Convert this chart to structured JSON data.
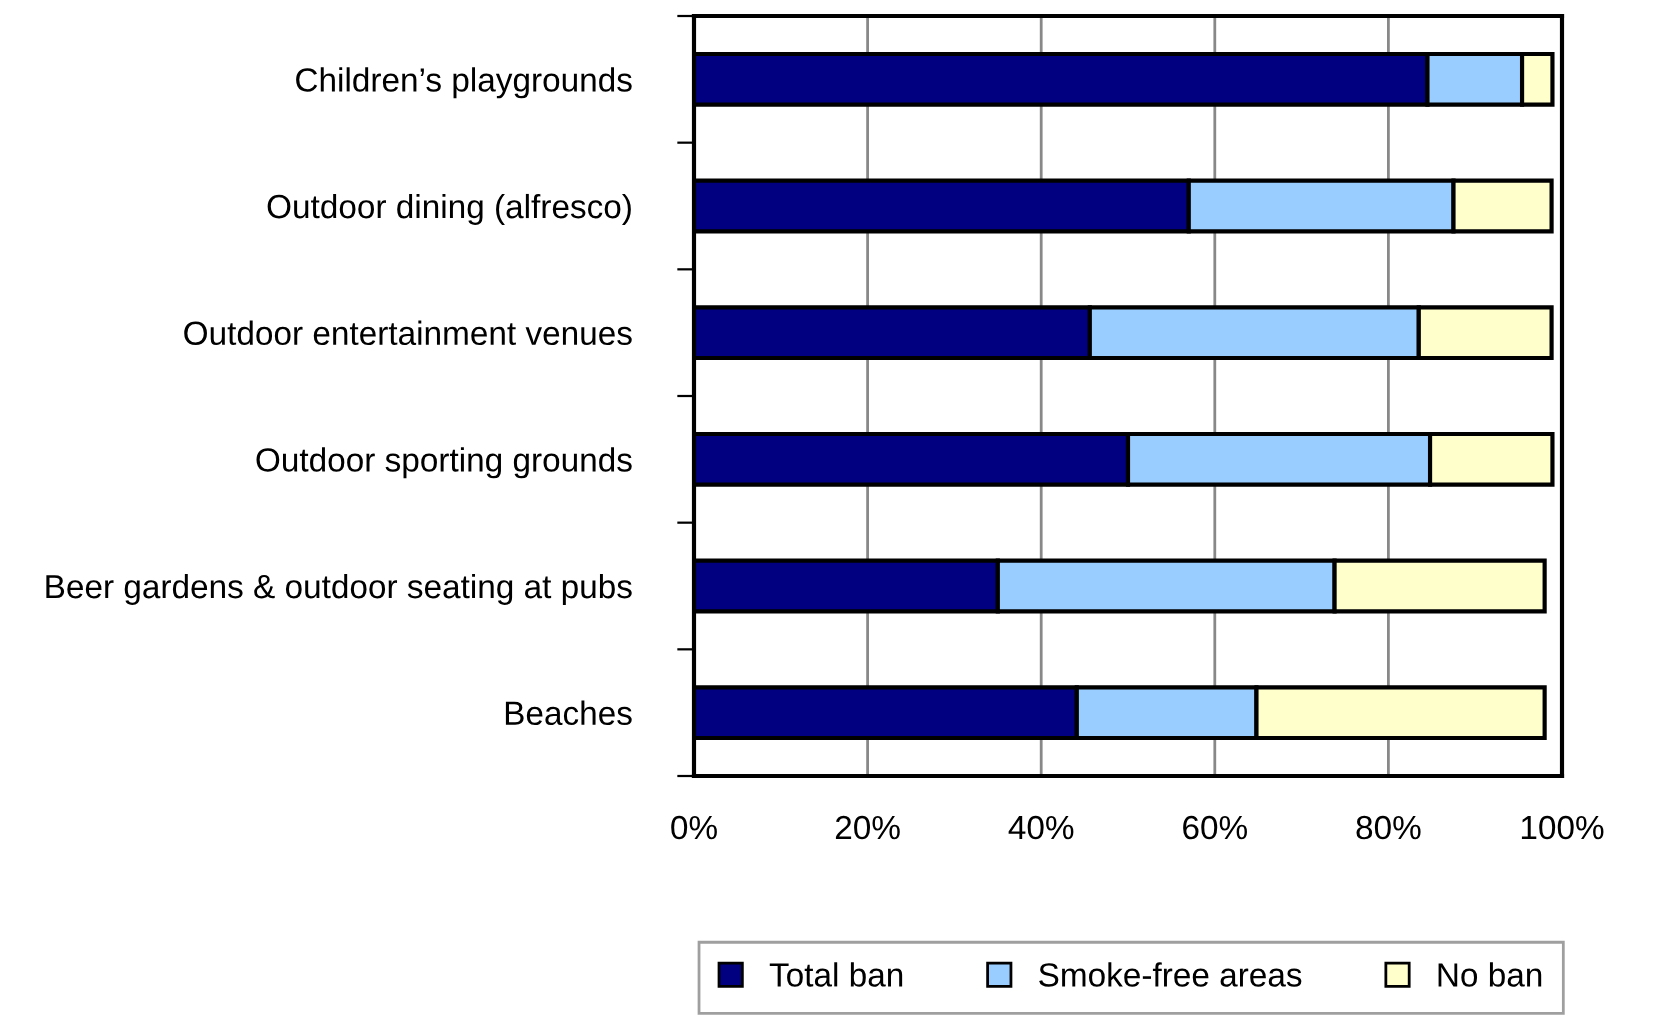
{
  "chart_data": {
    "type": "bar",
    "orientation": "horizontal",
    "stacked": true,
    "categories": [
      "Children’s playgrounds",
      "Outdoor dining (alfresco)",
      "Outdoor entertainment venues",
      "Outdoor sporting grounds",
      "Beer gardens & outdoor seating at pubs",
      "Beaches"
    ],
    "series": [
      {
        "name": "Total ban",
        "color": "#000080",
        "values": [
          84.5,
          57,
          45.6,
          50,
          35,
          44.1
        ]
      },
      {
        "name": "Smoke-free areas",
        "color": "#99ccff",
        "values": [
          10.9,
          30.5,
          37.9,
          34.8,
          38.8,
          20.7
        ]
      },
      {
        "name": "No ban",
        "color": "#ffffcc",
        "values": [
          3.5,
          11.3,
          15.3,
          14.1,
          24.2,
          33.2
        ]
      }
    ],
    "xlim": [
      0,
      100
    ],
    "xticks": [
      {
        "value": 0,
        "label": "0%"
      },
      {
        "value": 20,
        "label": "20%"
      },
      {
        "value": 40,
        "label": "40%"
      },
      {
        "value": 60,
        "label": "60%"
      },
      {
        "value": 80,
        "label": "80%"
      },
      {
        "value": 100,
        "label": "100%"
      }
    ],
    "grid": "x",
    "legend": "bottom right"
  }
}
